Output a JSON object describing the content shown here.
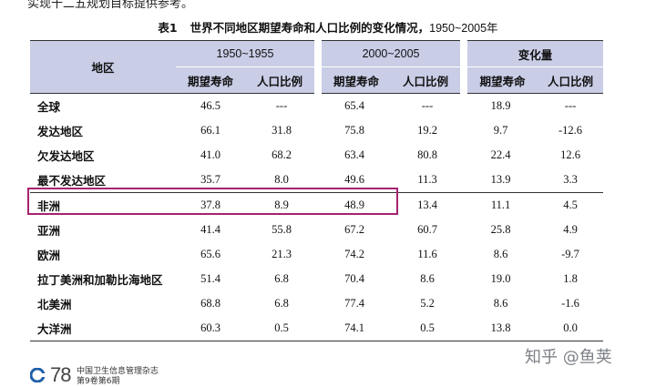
{
  "top_text": "实现十二五规划目标提供参考。",
  "caption": {
    "number": "表1",
    "title": "世界不同地区期望寿命和人口比例的变化情况，",
    "years": "1950~2005年"
  },
  "table": {
    "region_header": "地区",
    "groups": [
      "1950~1955",
      "2000~2005",
      "变化量"
    ],
    "subheaders": [
      "期望寿命",
      "人口比例",
      "期望寿命",
      "人口比例",
      "期望寿命",
      "人口比例"
    ],
    "rows": [
      {
        "region": "全球",
        "values": [
          "46.5",
          "---",
          "65.4",
          "---",
          "18.9",
          "---"
        ]
      },
      {
        "region": "发达地区",
        "values": [
          "66.1",
          "31.8",
          "75.8",
          "19.2",
          "9.7",
          "-12.6"
        ]
      },
      {
        "region": "欠发达地区",
        "values": [
          "41.0",
          "68.2",
          "63.4",
          "80.8",
          "22.4",
          "12.6"
        ]
      },
      {
        "region": "最不发达地区",
        "values": [
          "35.7",
          "8.0",
          "49.6",
          "11.3",
          "13.9",
          "3.3"
        ]
      },
      {
        "region": "非洲",
        "values": [
          "37.8",
          "8.9",
          "48.9",
          "13.4",
          "11.1",
          "4.5"
        ]
      },
      {
        "region": "亚洲",
        "values": [
          "41.4",
          "55.8",
          "67.2",
          "60.7",
          "25.8",
          "4.9"
        ]
      },
      {
        "region": "欧洲",
        "values": [
          "65.6",
          "21.3",
          "74.2",
          "11.6",
          "8.6",
          "-9.7"
        ]
      },
      {
        "region": "拉丁美洲和加勒比海地区",
        "values": [
          "51.4",
          "6.8",
          "70.4",
          "8.6",
          "19.0",
          "1.8"
        ]
      },
      {
        "region": "北美洲",
        "values": [
          "68.8",
          "6.8",
          "77.4",
          "5.2",
          "8.6",
          "-1.6"
        ]
      },
      {
        "region": "大洋洲",
        "values": [
          "60.3",
          "0.5",
          "74.1",
          "0.5",
          "13.8",
          "0.0"
        ]
      }
    ]
  },
  "watermark": "知乎 @鱼荚",
  "footer": {
    "page_number": "78",
    "journal_line1": "中国卫生信息管理杂志",
    "journal_line2": "第9卷第6期"
  },
  "colors": {
    "header_bg": "#c9cde6",
    "highlight": "#a6236f"
  }
}
